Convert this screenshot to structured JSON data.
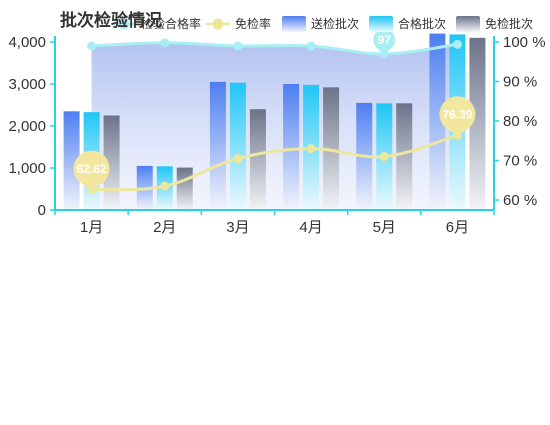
{
  "chart_data": {
    "type": "bar",
    "title": "批次检验情况",
    "categories": [
      "1月",
      "2月",
      "3月",
      "4月",
      "5月",
      "6月"
    ],
    "series": [
      {
        "name": "送检批次",
        "type": "bar",
        "axis": "left",
        "values": [
          2350,
          1050,
          3050,
          3000,
          2550,
          4200
        ]
      },
      {
        "name": "合格批次",
        "type": "bar",
        "axis": "left",
        "values": [
          2330,
          1040,
          3030,
          2980,
          2540,
          4180
        ]
      },
      {
        "name": "免检批次",
        "type": "bar",
        "axis": "left",
        "values": [
          2250,
          1010,
          2400,
          2920,
          2540,
          4100
        ]
      },
      {
        "name": "检验合格率",
        "type": "area-line",
        "axis": "right",
        "values": [
          99,
          99.8,
          99,
          99,
          97,
          99.4
        ],
        "labels": [
          "",
          "",
          "",
          "",
          "97",
          ""
        ]
      },
      {
        "name": "免检率",
        "type": "line",
        "axis": "right",
        "values": [
          62.62,
          63.5,
          70.5,
          73,
          71,
          76.39
        ],
        "labels": [
          "62.62",
          "",
          "",
          "",
          "",
          "76.39"
        ]
      }
    ],
    "left_axis": {
      "ylim": [
        0,
        4000
      ],
      "ticks": [
        "0",
        "1,000",
        "2,000",
        "3,000",
        "4,000"
      ]
    },
    "right_axis": {
      "ylim": [
        60,
        100
      ],
      "ticks": [
        "60 %",
        "70 %",
        "80 %",
        "90 %",
        "100 %"
      ]
    },
    "legend": {
      "position": "top-right",
      "labels": [
        "检验合格率",
        "免检率",
        "送检批次",
        "合格批次",
        "免检批次"
      ]
    },
    "colors": {
      "sent_top": "#4d7ef0",
      "sent_bottom": "#f2f4fb",
      "pass_top": "#1fc6f5",
      "pass_bottom": "#ecf9fd",
      "exempt_top": "#6b7389",
      "exempt_bottom": "#f3f4f7",
      "pass_rate_line": "#a9eef3",
      "pass_rate_area": "#b7c8f2",
      "exempt_rate_line": "#ede79b",
      "exempt_rate_marker": "#f3e7a0",
      "axis": "#27d3e0",
      "text": "#333333"
    }
  }
}
